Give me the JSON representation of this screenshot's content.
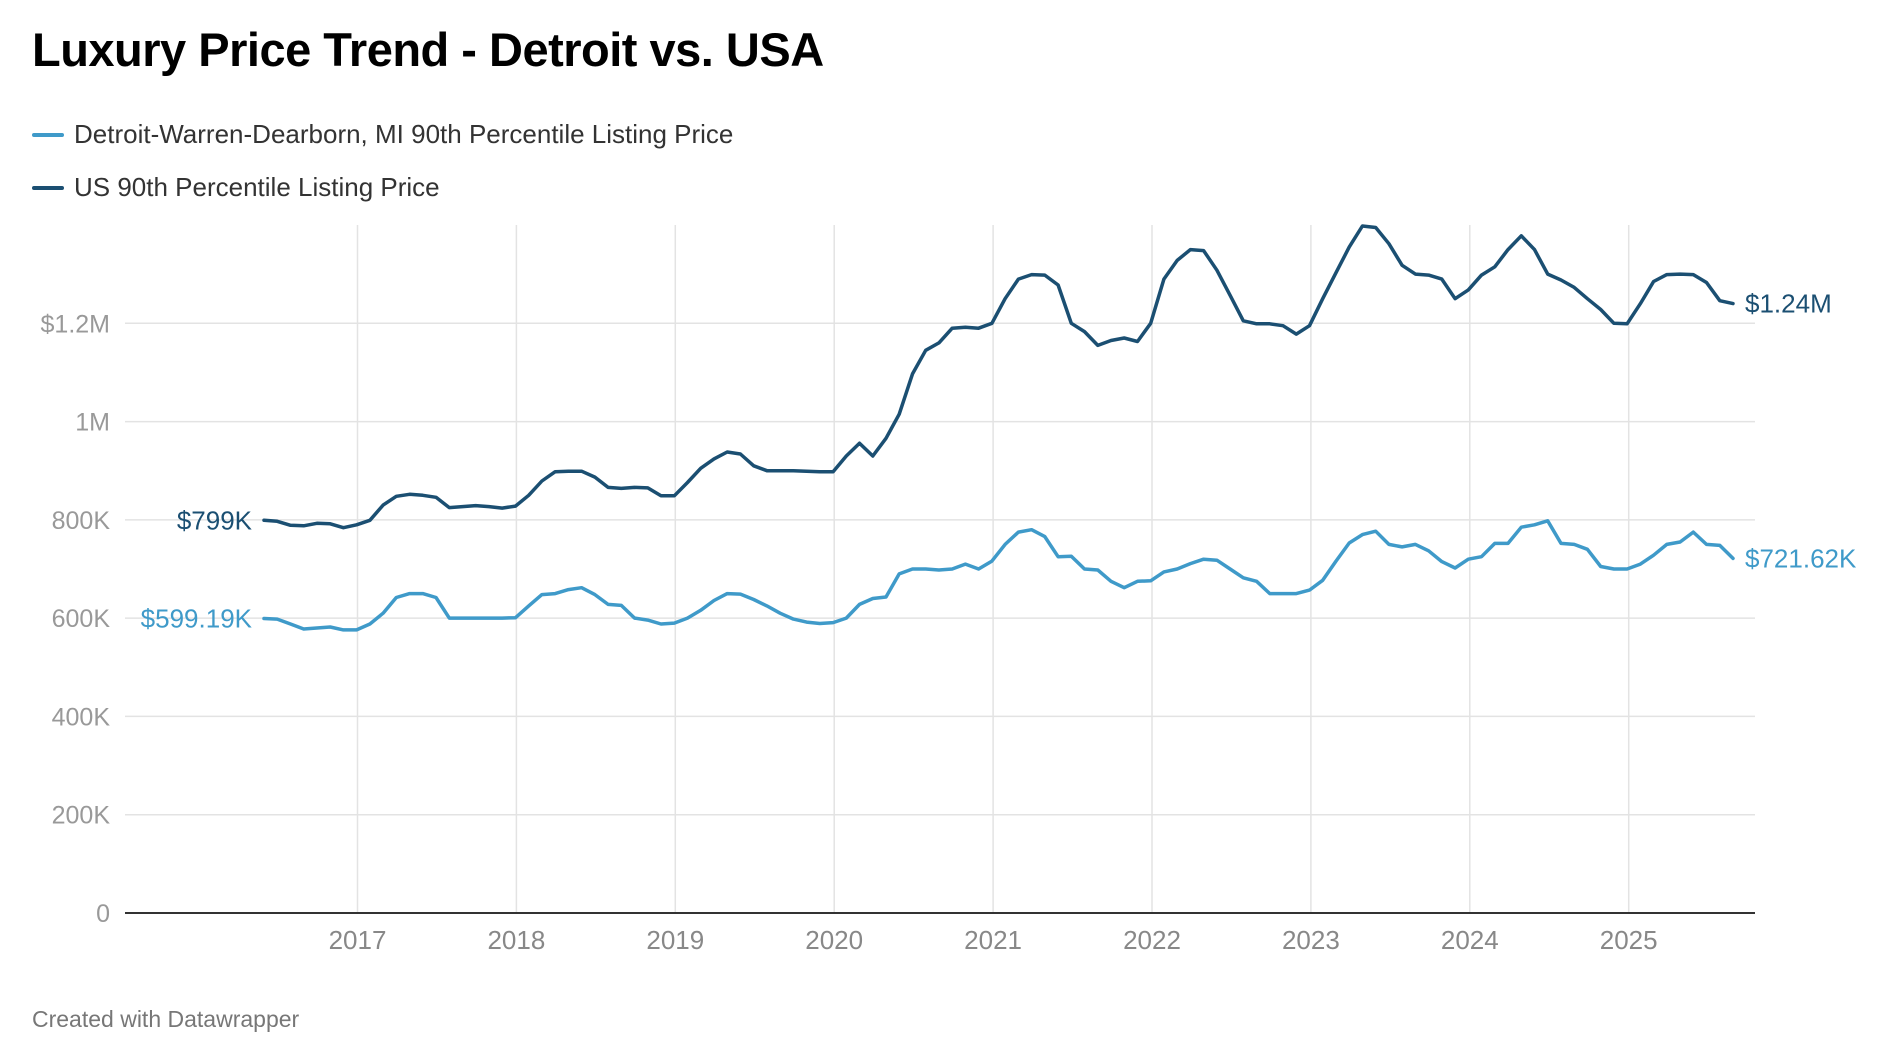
{
  "title": "Luxury Price Trend - Detroit vs. USA",
  "footer": "Created with Datawrapper",
  "colors": {
    "detroit": "#3f9ac9",
    "us": "#1b4f72",
    "grid": "#e3e3e3",
    "axis": "#333333",
    "tick": "#999999",
    "year_label": "#888888"
  },
  "chart_data": {
    "type": "line",
    "title": "Luxury Price Trend - Detroit vs. USA",
    "xlabel": "",
    "ylabel": "",
    "x_start": "2016-07",
    "x_end": "2025-09",
    "ylim": [
      0,
      1400000
    ],
    "grid": true,
    "legend_position": "top-left",
    "x_ticks": [
      {
        "value": 2017,
        "label": "2017"
      },
      {
        "value": 2018,
        "label": "2018"
      },
      {
        "value": 2019,
        "label": "2019"
      },
      {
        "value": 2020,
        "label": "2020"
      },
      {
        "value": 2021,
        "label": "2021"
      },
      {
        "value": 2022,
        "label": "2022"
      },
      {
        "value": 2023,
        "label": "2023"
      },
      {
        "value": 2024,
        "label": "2024"
      },
      {
        "value": 2025,
        "label": "2025"
      }
    ],
    "y_ticks": [
      {
        "value": 0,
        "label": "0"
      },
      {
        "value": 200000,
        "label": "200K"
      },
      {
        "value": 400000,
        "label": "400K"
      },
      {
        "value": 600000,
        "label": "600K"
      },
      {
        "value": 800000,
        "label": "800K"
      },
      {
        "value": 1000000,
        "label": "1M"
      },
      {
        "value": 1200000,
        "label": "$1.2M"
      }
    ],
    "series": [
      {
        "name": "Detroit-Warren-Dearborn, MI 90th Percentile Listing Price",
        "key": "detroit",
        "start_label": "$599.19K",
        "end_label": "$721.62K",
        "values": [
          599190,
          598000,
          588000,
          578000,
          580000,
          582000,
          576000,
          576000,
          588000,
          610000,
          642000,
          650000,
          650000,
          642000,
          600000,
          600000,
          600000,
          600000,
          600000,
          601000,
          625000,
          648000,
          650000,
          658000,
          662000,
          648000,
          628000,
          626000,
          600000,
          596000,
          588000,
          590000,
          600000,
          616000,
          636000,
          650000,
          649000,
          638000,
          625000,
          610000,
          598000,
          592000,
          589000,
          591000,
          600000,
          628000,
          640000,
          643000,
          690000,
          700000,
          700000,
          698000,
          700000,
          710000,
          700000,
          716000,
          750000,
          775000,
          780000,
          766000,
          725000,
          726000,
          700000,
          698000,
          675000,
          662000,
          675000,
          676000,
          694000,
          700000,
          711000,
          720000,
          718000,
          700000,
          682000,
          675000,
          650000,
          650000,
          650000,
          657000,
          677000,
          716000,
          753000,
          770000,
          777000,
          750000,
          745000,
          750000,
          737000,
          715000,
          702000,
          720000,
          725000,
          752000,
          752000,
          785000,
          790000,
          798000,
          752000,
          750000,
          740000,
          705000,
          700000,
          700000,
          710000,
          728000,
          750000,
          755000,
          775000,
          750000,
          748000,
          721620
        ]
      },
      {
        "name": "US 90th Percentile Listing Price",
        "key": "us",
        "start_label": "$799K",
        "end_label": "$1.24M",
        "values": [
          799000,
          797000,
          789000,
          788000,
          793000,
          792000,
          784000,
          790000,
          799000,
          830000,
          848000,
          852000,
          850000,
          846000,
          825000,
          827000,
          829000,
          827000,
          824000,
          828000,
          850000,
          879000,
          898000,
          899000,
          899000,
          887000,
          866000,
          864000,
          866000,
          865000,
          849000,
          849000,
          876000,
          905000,
          924000,
          938000,
          934000,
          910000,
          900000,
          900000,
          900000,
          899000,
          898000,
          898000,
          930000,
          956000,
          930000,
          966000,
          1015000,
          1097000,
          1145000,
          1160000,
          1190000,
          1192000,
          1190000,
          1200000,
          1250000,
          1290000,
          1299000,
          1298000,
          1278000,
          1200000,
          1183000,
          1155000,
          1165000,
          1170000,
          1163000,
          1200000,
          1290000,
          1328000,
          1350000,
          1348000,
          1308000,
          1257000,
          1205000,
          1199000,
          1199000,
          1195000,
          1178000,
          1195000,
          1250000,
          1303000,
          1355000,
          1398000,
          1395000,
          1362000,
          1318000,
          1300000,
          1298000,
          1290000,
          1250000,
          1268000,
          1298000,
          1315000,
          1350000,
          1378000,
          1350000,
          1300000,
          1288000,
          1273000,
          1250000,
          1228000,
          1200000,
          1199000,
          1240000,
          1285000,
          1299000,
          1300000,
          1299000,
          1283000,
          1246000,
          1240000
        ]
      }
    ]
  }
}
